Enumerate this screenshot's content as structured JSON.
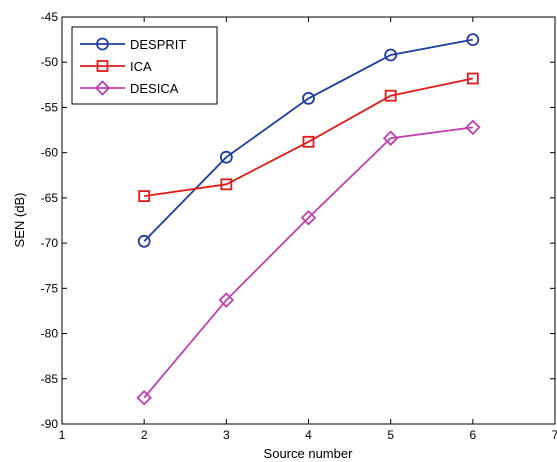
{
  "chart_data": {
    "type": "line",
    "title": "",
    "xlabel": "Source number",
    "ylabel": "SEN (dB)",
    "xlim": [
      1,
      7
    ],
    "ylim": [
      -90,
      -45
    ],
    "xticks": [
      1,
      2,
      3,
      4,
      5,
      6,
      7
    ],
    "xtick_labels": [
      "1",
      "2",
      "3",
      "4",
      "5",
      "6",
      "7"
    ],
    "yticks": [
      -45,
      -50,
      -55,
      -60,
      -65,
      -70,
      -75,
      -80,
      -85,
      -90
    ],
    "ytick_labels": [
      "-45",
      "-50",
      "-55",
      "-60",
      "-65",
      "-70",
      "-75",
      "-80",
      "-85",
      "-90"
    ],
    "grid": false,
    "legend_position": "top-left",
    "x": [
      2,
      3,
      4,
      5,
      6
    ],
    "series": [
      {
        "name": "DESPRIT",
        "values": [
          -69.8,
          -60.5,
          -54.0,
          -49.2,
          -47.5
        ],
        "color": "#1f3d9e",
        "marker": "circle"
      },
      {
        "name": "ICA",
        "values": [
          -64.8,
          -63.5,
          -58.8,
          -53.7,
          -51.8
        ],
        "color": "#e01b1b",
        "marker": "square"
      },
      {
        "name": "DESICA",
        "values": [
          -87.1,
          -76.3,
          -67.2,
          -58.4,
          -57.2
        ],
        "color": "#c040b0",
        "marker": "diamond"
      }
    ]
  }
}
